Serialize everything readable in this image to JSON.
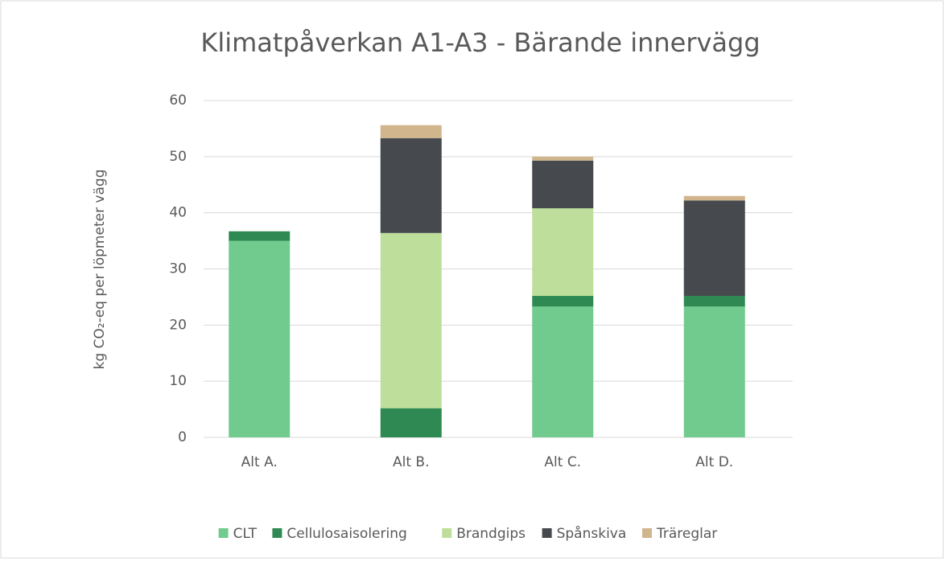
{
  "chart_data": {
    "type": "stacked_bar",
    "title": "Klimatpåverkan A1-A3 - Bärande innervägg",
    "y_label": "kg CO₂-eq per löpmeter vägg",
    "categories": [
      "Alt A.",
      "Alt B.",
      "Alt C.",
      "Alt D."
    ],
    "series": [
      {
        "name": "CLT",
        "color": "#71cb8f",
        "values": [
          35.0,
          0,
          23.3,
          23.3
        ]
      },
      {
        "name": "Cellulosaisolering",
        "color": "#2e8a52",
        "values": [
          1.7,
          5.2,
          1.9,
          1.9
        ]
      },
      {
        "name": "Brandgips",
        "color": "#bddf9b",
        "values": [
          0,
          31.2,
          15.6,
          0
        ]
      },
      {
        "name": "Spånskiva",
        "color": "#464a4e",
        "values": [
          0,
          16.9,
          8.5,
          17.0
        ]
      },
      {
        "name": "Träreglar",
        "color": "#d1b58d",
        "values": [
          0,
          2.3,
          0.7,
          0.8
        ]
      }
    ],
    "ylim": [
      0,
      60
    ],
    "yticks": [
      0,
      10,
      20,
      30,
      40,
      50,
      60
    ],
    "grid": true,
    "legend": "bottom"
  }
}
